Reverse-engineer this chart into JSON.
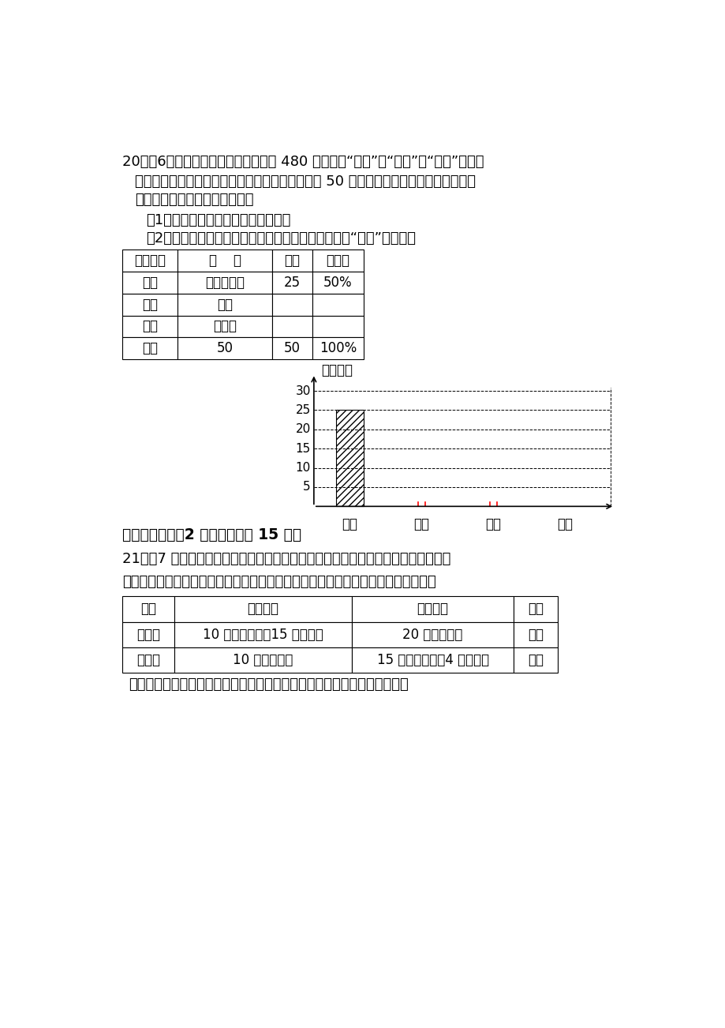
{
  "bg_color": "#ffffff",
  "table1_headers": [
    "兴趣小组",
    "划    记",
    "频数",
    "百分比"
  ],
  "table1_row1": [
    "学科",
    "正正正正正",
    "25",
    "50%"
  ],
  "table1_row2": [
    "文体",
    "正正",
    "",
    ""
  ],
  "table1_row3": [
    "手工",
    "正正正",
    "",
    ""
  ],
  "table1_row4": [
    "合计",
    "50",
    "50",
    "100%"
  ],
  "chart_ylabel": "学生人数",
  "chart_xticks": [
    "学科",
    "文体",
    "手工",
    "项目"
  ],
  "chart_yticks": [
    5,
    10,
    15,
    20,
    25,
    30
  ],
  "chart_bar_value": 25,
  "table2_headers": [
    "记录",
    "天平左边",
    "天平右边",
    "状态"
  ],
  "table2_row1": [
    "记录一",
    "10 枚壹元硬币，15 克的牀码",
    "20 枚伍角硬币",
    "平衡"
  ],
  "table2_row2": [
    "记录二",
    "10 枚壹元硬币",
    "15 枚伍角硬币，4 克的牀码",
    "平衡"
  ]
}
